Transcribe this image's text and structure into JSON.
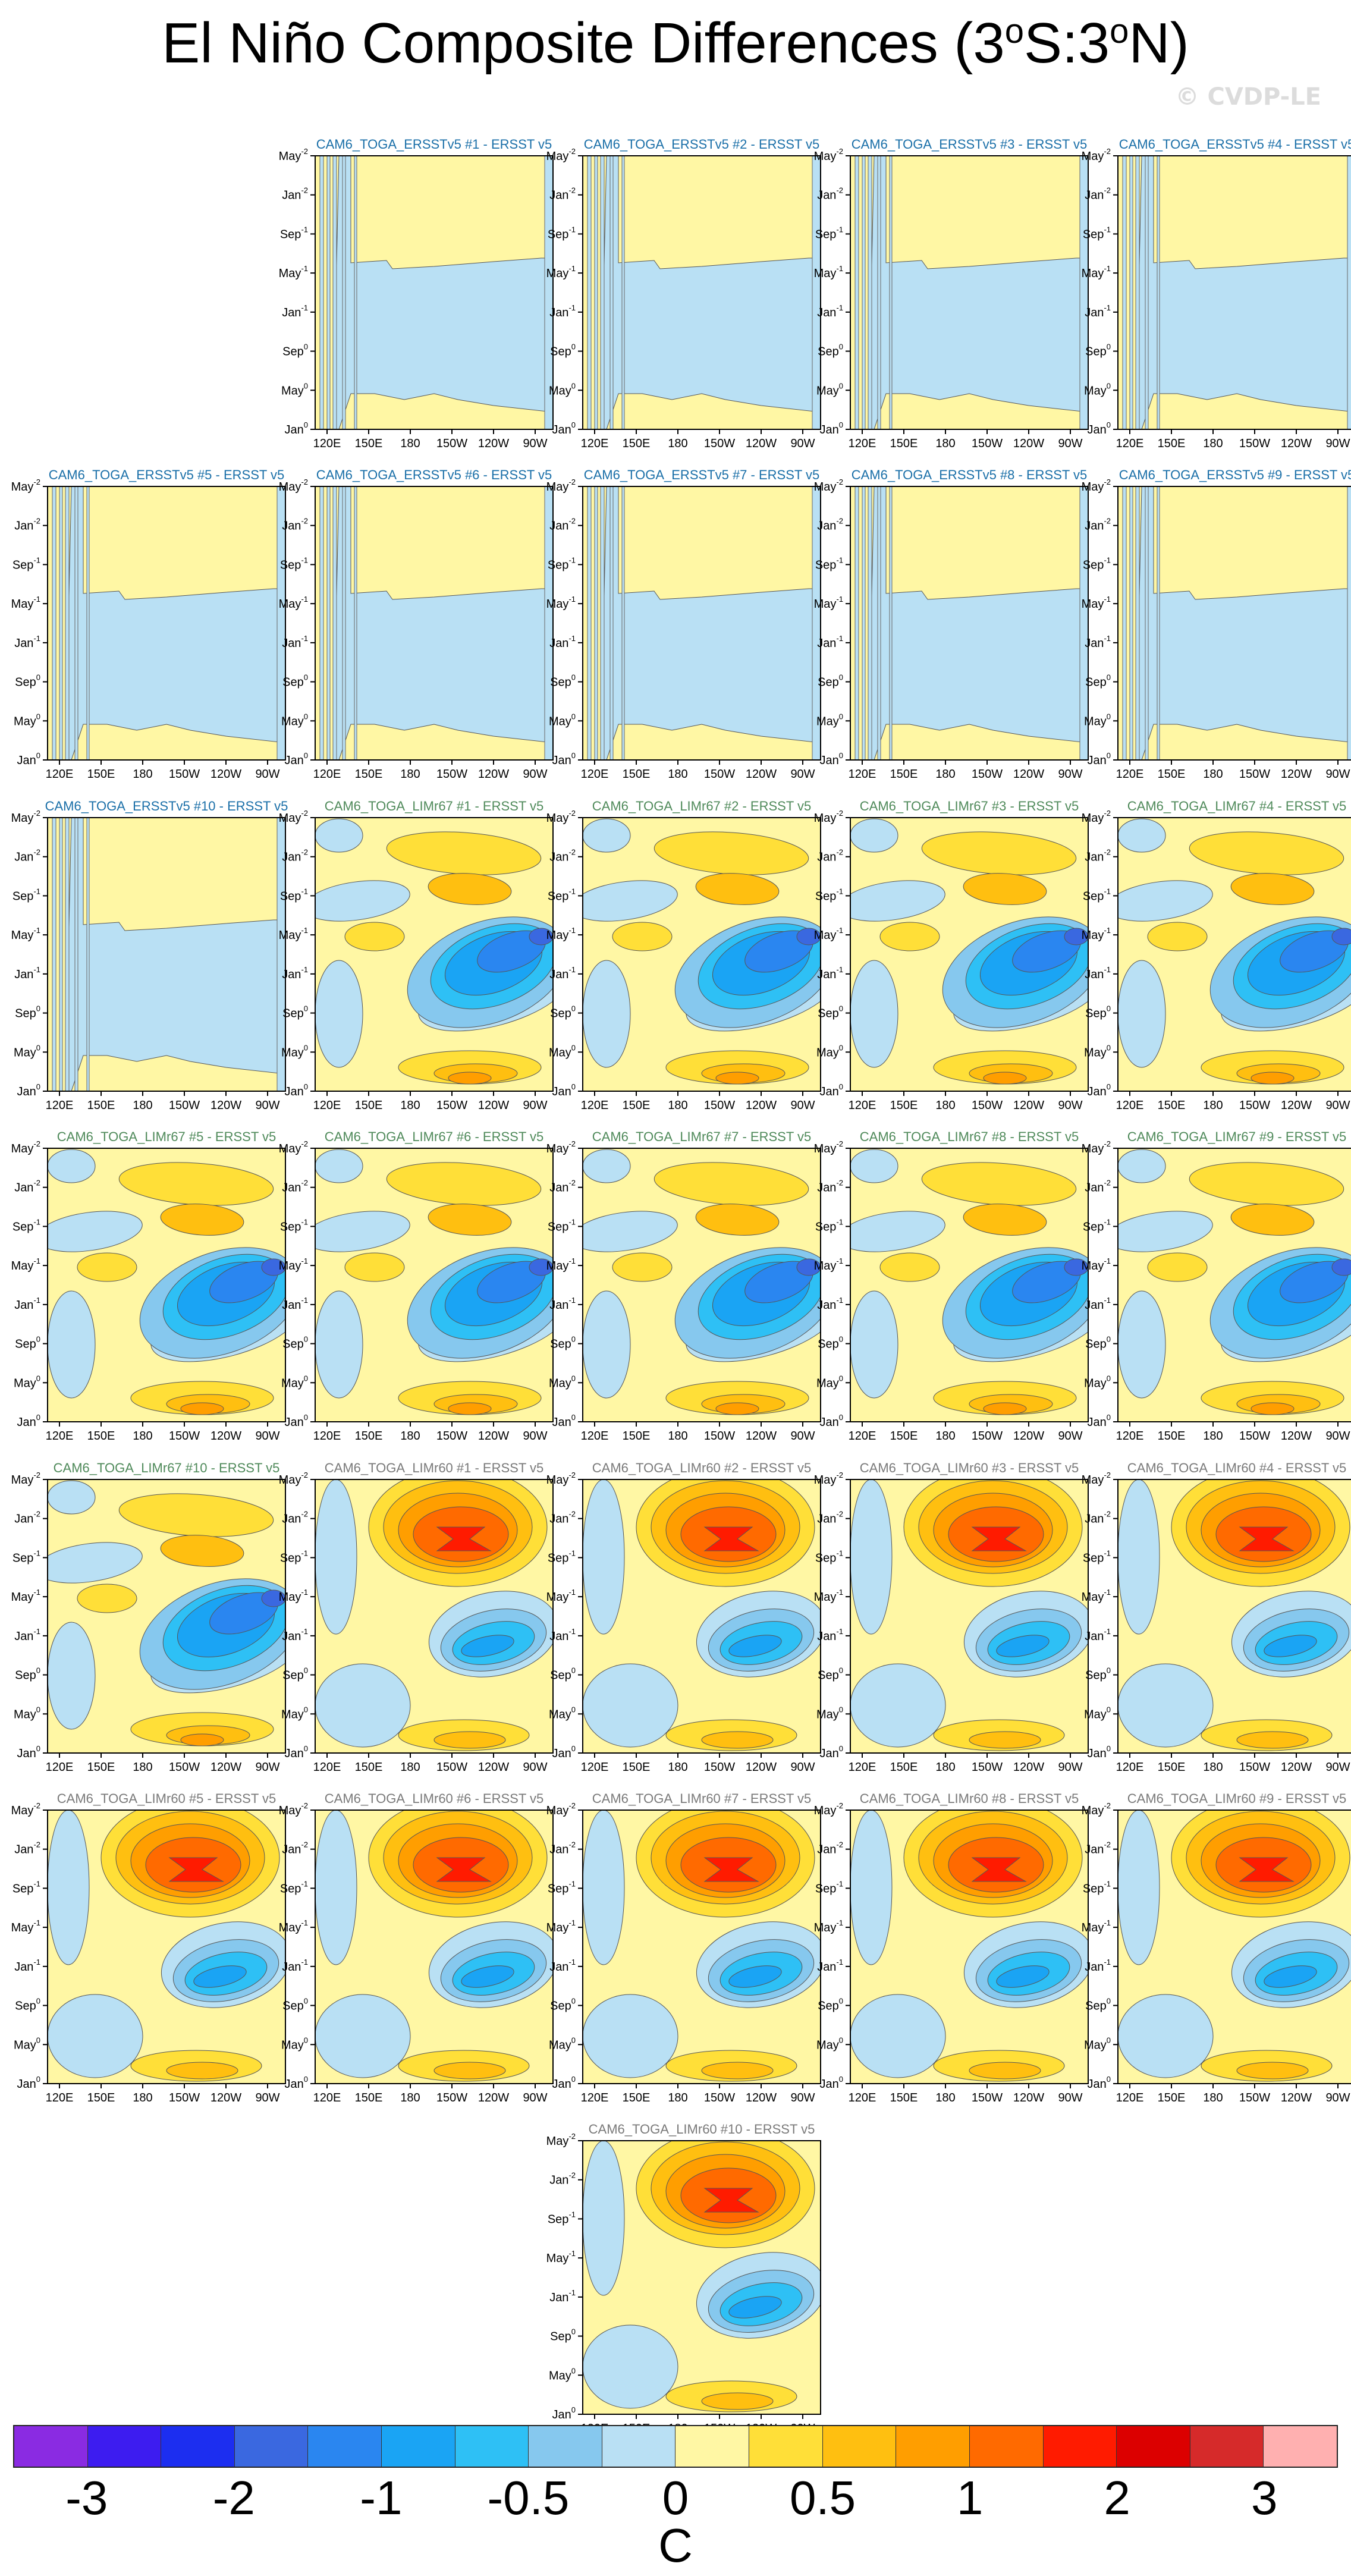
{
  "title": {
    "main": "El Niño Composite Differences (3",
    "sup1": "o",
    "mid": "S:3",
    "sup2": "o",
    "end": "N)"
  },
  "watermark": "© CVDP-LE",
  "axes": {
    "x_ticks": [
      "120E",
      "150E",
      "180",
      "150W",
      "120W",
      "90W"
    ],
    "y_ticks": [
      {
        "month": "May",
        "year": "-2"
      },
      {
        "month": "Jan",
        "year": "-2"
      },
      {
        "month": "Sep",
        "year": "-1"
      },
      {
        "month": "May",
        "year": "-1"
      },
      {
        "month": "Jan",
        "year": "-1"
      },
      {
        "month": "Sep",
        "year": "0"
      },
      {
        "month": "May",
        "year": "0"
      },
      {
        "month": "Jan",
        "year": "0"
      }
    ]
  },
  "colors": {
    "title_ersst": "#1a6fa8",
    "title_lim67": "#4f8a5a",
    "title_lim60": "#7a7a7a"
  },
  "chart_data": {
    "type": "heatmap",
    "colorbar": {
      "unit": "C",
      "labels": [
        "-3",
        "-2",
        "-1",
        "-0.5",
        "0",
        "0.5",
        "1",
        "2",
        "3"
      ],
      "colors": [
        "#8a2be2",
        "#3d1cf0",
        "#1c2ef0",
        "#3a68e0",
        "#2a86f0",
        "#1aa4f4",
        "#2ec0f5",
        "#86c8ee",
        "#b9e0f4",
        "#fff7a4",
        "#ffdf38",
        "#ffbf10",
        "#ff9e00",
        "#ff6a00",
        "#ff1b00",
        "#dc0000",
        "#d62a2a",
        "#ffb0b0"
      ]
    },
    "panels": [
      {
        "name": "CAM6_TOGA_ERSSTv5 #1 - ERSST v5",
        "group": "ersst"
      },
      {
        "name": "CAM6_TOGA_ERSSTv5 #2 - ERSST v5",
        "group": "ersst"
      },
      {
        "name": "CAM6_TOGA_ERSSTv5 #3 - ERSST v5",
        "group": "ersst"
      },
      {
        "name": "CAM6_TOGA_ERSSTv5 #4 - ERSST v5",
        "group": "ersst"
      },
      {
        "name": "CAM6_TOGA_ERSSTv5 #5 - ERSST v5",
        "group": "ersst"
      },
      {
        "name": "CAM6_TOGA_ERSSTv5 #6 - ERSST v5",
        "group": "ersst"
      },
      {
        "name": "CAM6_TOGA_ERSSTv5 #7 - ERSST v5",
        "group": "ersst"
      },
      {
        "name": "CAM6_TOGA_ERSSTv5 #8 - ERSST v5",
        "group": "ersst"
      },
      {
        "name": "CAM6_TOGA_ERSSTv5 #9 - ERSST v5",
        "group": "ersst"
      },
      {
        "name": "CAM6_TOGA_ERSSTv5 #10 - ERSST v5",
        "group": "ersst"
      },
      {
        "name": "CAM6_TOGA_LIMr67 #1 - ERSST v5",
        "group": "lim67"
      },
      {
        "name": "CAM6_TOGA_LIMr67 #2 - ERSST v5",
        "group": "lim67"
      },
      {
        "name": "CAM6_TOGA_LIMr67 #3 - ERSST v5",
        "group": "lim67"
      },
      {
        "name": "CAM6_TOGA_LIMr67 #4 - ERSST v5",
        "group": "lim67"
      },
      {
        "name": "CAM6_TOGA_LIMr67 #5 - ERSST v5",
        "group": "lim67"
      },
      {
        "name": "CAM6_TOGA_LIMr67 #6 - ERSST v5",
        "group": "lim67"
      },
      {
        "name": "CAM6_TOGA_LIMr67 #7 - ERSST v5",
        "group": "lim67"
      },
      {
        "name": "CAM6_TOGA_LIMr67 #8 - ERSST v5",
        "group": "lim67"
      },
      {
        "name": "CAM6_TOGA_LIMr67 #9 - ERSST v5",
        "group": "lim67"
      },
      {
        "name": "CAM6_TOGA_LIMr67 #10 - ERSST v5",
        "group": "lim67"
      },
      {
        "name": "CAM6_TOGA_LIMr60 #1 - ERSST v5",
        "group": "lim60"
      },
      {
        "name": "CAM6_TOGA_LIMr60 #2 - ERSST v5",
        "group": "lim60"
      },
      {
        "name": "CAM6_TOGA_LIMr60 #3 - ERSST v5",
        "group": "lim60"
      },
      {
        "name": "CAM6_TOGA_LIMr60 #4 - ERSST v5",
        "group": "lim60"
      },
      {
        "name": "CAM6_TOGA_LIMr60 #5 - ERSST v5",
        "group": "lim60"
      },
      {
        "name": "CAM6_TOGA_LIMr60 #6 - ERSST v5",
        "group": "lim60"
      },
      {
        "name": "CAM6_TOGA_LIMr60 #7 - ERSST v5",
        "group": "lim60"
      },
      {
        "name": "CAM6_TOGA_LIMr60 #8 - ERSST v5",
        "group": "lim60"
      },
      {
        "name": "CAM6_TOGA_LIMr60 #9 - ERSST v5",
        "group": "lim60"
      },
      {
        "name": "CAM6_TOGA_LIMr60 #10 - ERSST v5",
        "group": "lim60"
      }
    ]
  }
}
